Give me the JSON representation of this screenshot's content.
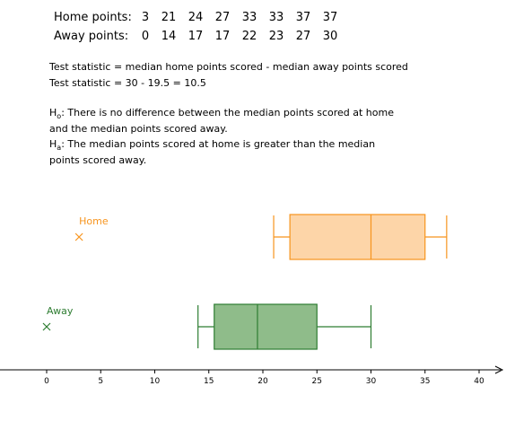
{
  "table": {
    "home_label": "Home points:",
    "away_label": "Away points:",
    "home_values": [
      3,
      21,
      24,
      27,
      33,
      33,
      37,
      37
    ],
    "away_values": [
      0,
      14,
      17,
      17,
      22,
      23,
      27,
      30
    ]
  },
  "statistic": {
    "line1": "Test statistic = median home points scored - median away points scored",
    "line2": "Test statistic = 30 - 19.5 = 10.5"
  },
  "hypotheses": {
    "h0_letter": "H",
    "h0_sub": "o",
    "h0_text": ": There is no difference between the median points scored at home and the median points scored away.",
    "ha_letter": "H",
    "ha_sub": "a",
    "ha_text": ": The median points scored at home is greater than the median points scored away."
  },
  "chart_data": {
    "type": "boxplot",
    "x_ticks": [
      0,
      5,
      10,
      15,
      20,
      25,
      30,
      35,
      40
    ],
    "xlim": [
      0,
      42
    ],
    "series": [
      {
        "name": "Home",
        "color": "#f7941d",
        "fill": "#fdd5a8",
        "min": 21,
        "q1": 22.5,
        "median": 30,
        "q3": 35,
        "max": 37,
        "marker_x": 3
      },
      {
        "name": "Away",
        "color": "#2e7d32",
        "fill": "#8fbc8a",
        "min": 14,
        "q1": 15.5,
        "median": 19.5,
        "q3": 25,
        "max": 30,
        "marker_x": 0
      }
    ]
  }
}
